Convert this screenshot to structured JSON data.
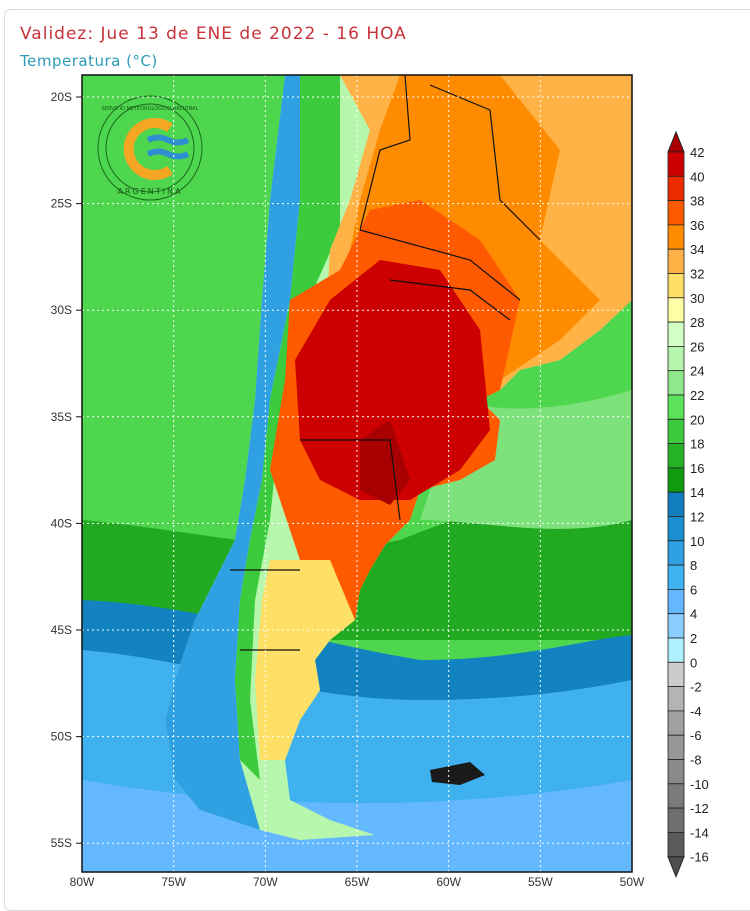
{
  "header": {
    "title": "Validez: Jue 13 de ENE de 2022 - 16 HOA",
    "subtitle": "Temperatura (°C)"
  },
  "logo": {
    "text_top": "SERVICIO METEOROLÓGICO NACIONAL",
    "text_bottom": "ARGENTINA",
    "colors": {
      "ring": "#f5a623",
      "waves": "#2f8fd0"
    }
  },
  "map": {
    "lat_labels": [
      "20S",
      "25S",
      "30S",
      "35S",
      "40S",
      "45S",
      "50S",
      "55S"
    ],
    "lon_labels": [
      "80W",
      "75W",
      "70W",
      "65W",
      "60W",
      "55W",
      "50W"
    ]
  },
  "colorbar": {
    "labels": [
      "42",
      "40",
      "38",
      "36",
      "34",
      "32",
      "30",
      "28",
      "26",
      "24",
      "22",
      "20",
      "18",
      "16",
      "14",
      "12",
      "10",
      "8",
      "6",
      "4",
      "2",
      "0",
      "-2",
      "-4",
      "-6",
      "-8",
      "-10",
      "-12",
      "-14",
      "-16"
    ],
    "arrow_top_color": "#a80000",
    "arrow_bottom_color": "#505050",
    "colors": [
      "#cc0000",
      "#ee2a00",
      "#ff5a00",
      "#ff8c00",
      "#ffb347",
      "#ffe066",
      "#ffffa8",
      "#d2ffc6",
      "#b6f7ad",
      "#8fe88b",
      "#5de25d",
      "#3ccb3c",
      "#24b424",
      "#109a10",
      "#0f7fbf",
      "#1a8fd0",
      "#2fa0e2",
      "#3eb2ee",
      "#63b8ff",
      "#8ccdff",
      "#aef0ff",
      "#cccccc",
      "#b4b4b4",
      "#a0a0a0",
      "#969696",
      "#8a8a8a",
      "#7a7a7a",
      "#6e6e6e",
      "#5a5a5a"
    ]
  }
}
